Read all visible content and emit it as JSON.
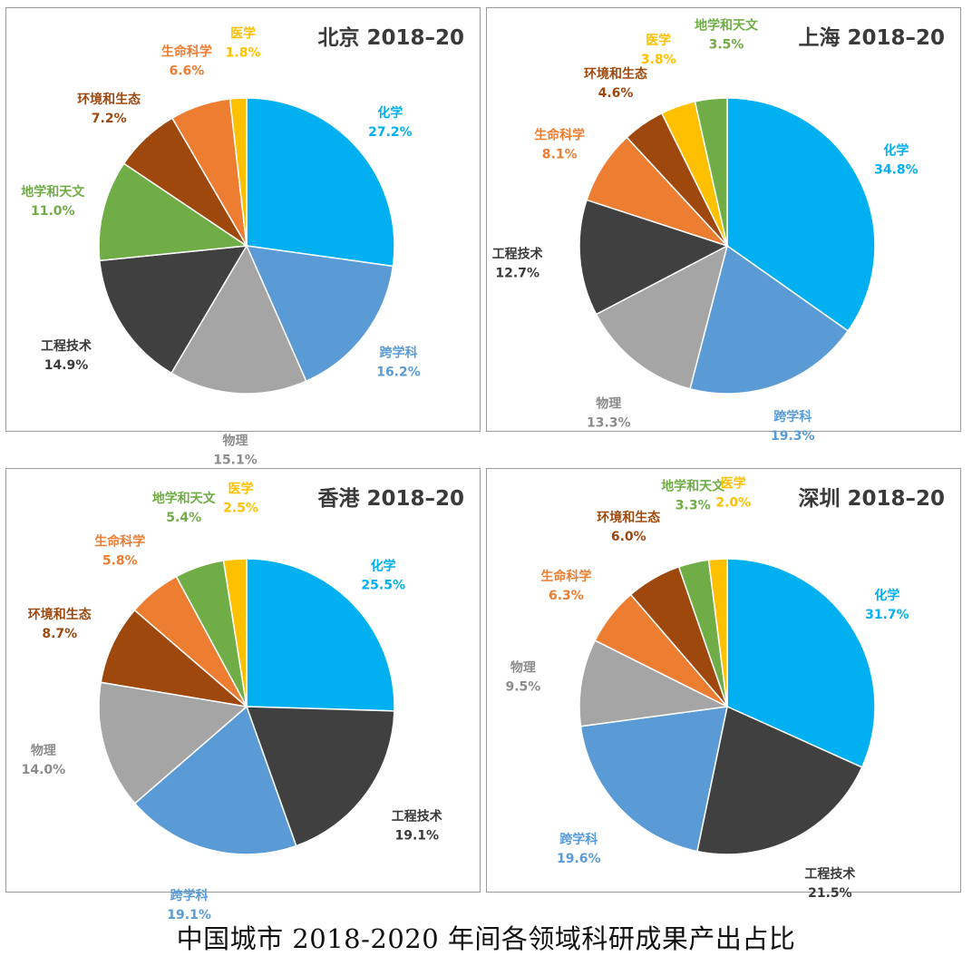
{
  "caption": "中国城市 2018-2020 年间各领域科研成果产出占比",
  "chart_data": [
    {
      "type": "pie",
      "title": "北京 2018–20",
      "slices": [
        {
          "label": "化学",
          "value": 27.2,
          "display": "27.2%",
          "color": "#00B0F0"
        },
        {
          "label": "跨学科",
          "value": 16.2,
          "display": "16.2%",
          "color": "#5B9BD5"
        },
        {
          "label": "物理",
          "value": 15.1,
          "display": "15.1%",
          "color": "#A5A5A5"
        },
        {
          "label": "工程技术",
          "value": 14.9,
          "display": "14.9%",
          "color": "#404040"
        },
        {
          "label": "地学和天文",
          "value": 11.0,
          "display": "11.0%",
          "color": "#70AD47"
        },
        {
          "label": "环境和生态",
          "value": 7.2,
          "display": "7.2%",
          "color": "#9E480E"
        },
        {
          "label": "生命科学",
          "value": 6.6,
          "display": "6.6%",
          "color": "#ED7D31"
        },
        {
          "label": "医学",
          "value": 1.8,
          "display": "1.8%",
          "color": "#FFC000"
        }
      ]
    },
    {
      "type": "pie",
      "title": "上海 2018–20",
      "slices": [
        {
          "label": "化学",
          "value": 34.8,
          "display": "34.8%",
          "color": "#00B0F0"
        },
        {
          "label": "跨学科",
          "value": 19.3,
          "display": "19.3%",
          "color": "#5B9BD5"
        },
        {
          "label": "物理",
          "value": 13.3,
          "display": "13.3%",
          "color": "#A5A5A5"
        },
        {
          "label": "工程技术",
          "value": 12.7,
          "display": "12.7%",
          "color": "#404040"
        },
        {
          "label": "生命科学",
          "value": 8.1,
          "display": "8.1%",
          "color": "#ED7D31"
        },
        {
          "label": "环境和生态",
          "value": 4.6,
          "display": "4.6%",
          "color": "#9E480E"
        },
        {
          "label": "医学",
          "value": 3.8,
          "display": "3.8%",
          "color": "#FFC000"
        },
        {
          "label": "地学和天文",
          "value": 3.5,
          "display": "3.5%",
          "color": "#70AD47"
        }
      ]
    },
    {
      "type": "pie",
      "title": "香港 2018–20",
      "slices": [
        {
          "label": "化学",
          "value": 25.5,
          "display": "25.5%",
          "color": "#00B0F0"
        },
        {
          "label": "工程技术",
          "value": 19.1,
          "display": "19.1%",
          "color": "#404040"
        },
        {
          "label": "跨学科",
          "value": 19.1,
          "display": "19.1%",
          "color": "#5B9BD5"
        },
        {
          "label": "物理",
          "value": 14.0,
          "display": "14.0%",
          "color": "#A5A5A5"
        },
        {
          "label": "环境和生态",
          "value": 8.7,
          "display": "8.7%",
          "color": "#9E480E"
        },
        {
          "label": "生命科学",
          "value": 5.8,
          "display": "5.8%",
          "color": "#ED7D31"
        },
        {
          "label": "地学和天文",
          "value": 5.4,
          "display": "5.4%",
          "color": "#70AD47"
        },
        {
          "label": "医学",
          "value": 2.5,
          "display": "2.5%",
          "color": "#FFC000"
        }
      ]
    },
    {
      "type": "pie",
      "title": "深圳 2018–20",
      "slices": [
        {
          "label": "化学",
          "value": 31.7,
          "display": "31.7%",
          "color": "#00B0F0"
        },
        {
          "label": "工程技术",
          "value": 21.5,
          "display": "21.5%",
          "color": "#404040"
        },
        {
          "label": "跨学科",
          "value": 19.6,
          "display": "19.6%",
          "color": "#5B9BD5"
        },
        {
          "label": "物理",
          "value": 9.5,
          "display": "9.5%",
          "color": "#A5A5A5"
        },
        {
          "label": "生命科学",
          "value": 6.3,
          "display": "6.3%",
          "color": "#ED7D31"
        },
        {
          "label": "环境和生态",
          "value": 6.0,
          "display": "6.0%",
          "color": "#9E480E"
        },
        {
          "label": "地学和天文",
          "value": 3.3,
          "display": "3.3%",
          "color": "#70AD47"
        },
        {
          "label": "医学",
          "value": 2.0,
          "display": "2.0%",
          "color": "#FFC000"
        }
      ]
    }
  ]
}
